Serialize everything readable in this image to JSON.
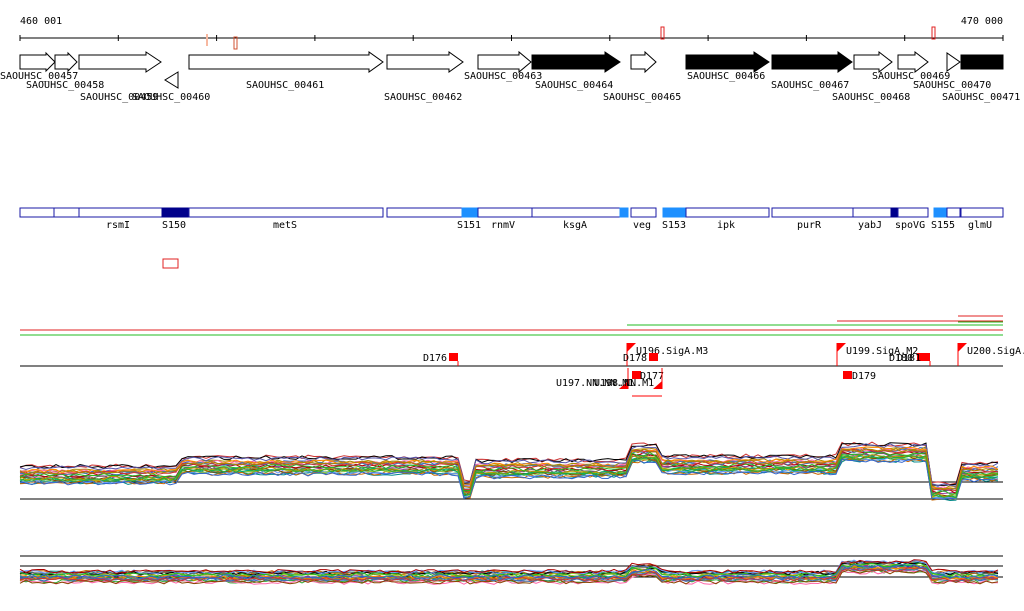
{
  "ruler": {
    "start_label": "460 001",
    "end_label": "470 000"
  },
  "gene_track": {
    "labels": [
      "SAOUHSC_00457",
      "SAOUHSC_00458",
      "SAOUHSC_00459",
      "SAOUHSC_00460",
      "SAOUHSC_00461",
      "SAOUHSC_00462",
      "SAOUHSC_00463",
      "SAOUHSC_00464",
      "SAOUHSC_00465",
      "SAOUHSC_00466",
      "SAOUHSC_00467",
      "SAOUHSC_00468",
      "SAOUHSC_00469",
      "SAOUHSC_00470",
      "SAOUHSC_00471"
    ]
  },
  "annotation_track": {
    "labels": [
      "rsmI",
      "S150",
      "metS",
      "S151",
      "rnmV",
      "ksgA",
      "veg",
      "S153",
      "ipk",
      "purR",
      "yabJ",
      "spoVG",
      "S155",
      "glmU"
    ]
  },
  "regulatory_track": {
    "labels": [
      "D176",
      "U196.SigA.M3",
      "D178",
      "D177",
      "U197.NN.NN.M1",
      "U198.NN.M1",
      "U199.SigA.M2",
      "D180",
      "D181",
      "D179",
      "U200.SigA."
    ]
  },
  "colors": {
    "gene_outline": "#000000",
    "gene_filled": "#000000",
    "annotation_outline": "#1a1aa6",
    "annotation_dark": "#00008b",
    "annotation_light": "#1e90ff",
    "feature_red": "#ff0000",
    "line_green": "#22bb22"
  }
}
